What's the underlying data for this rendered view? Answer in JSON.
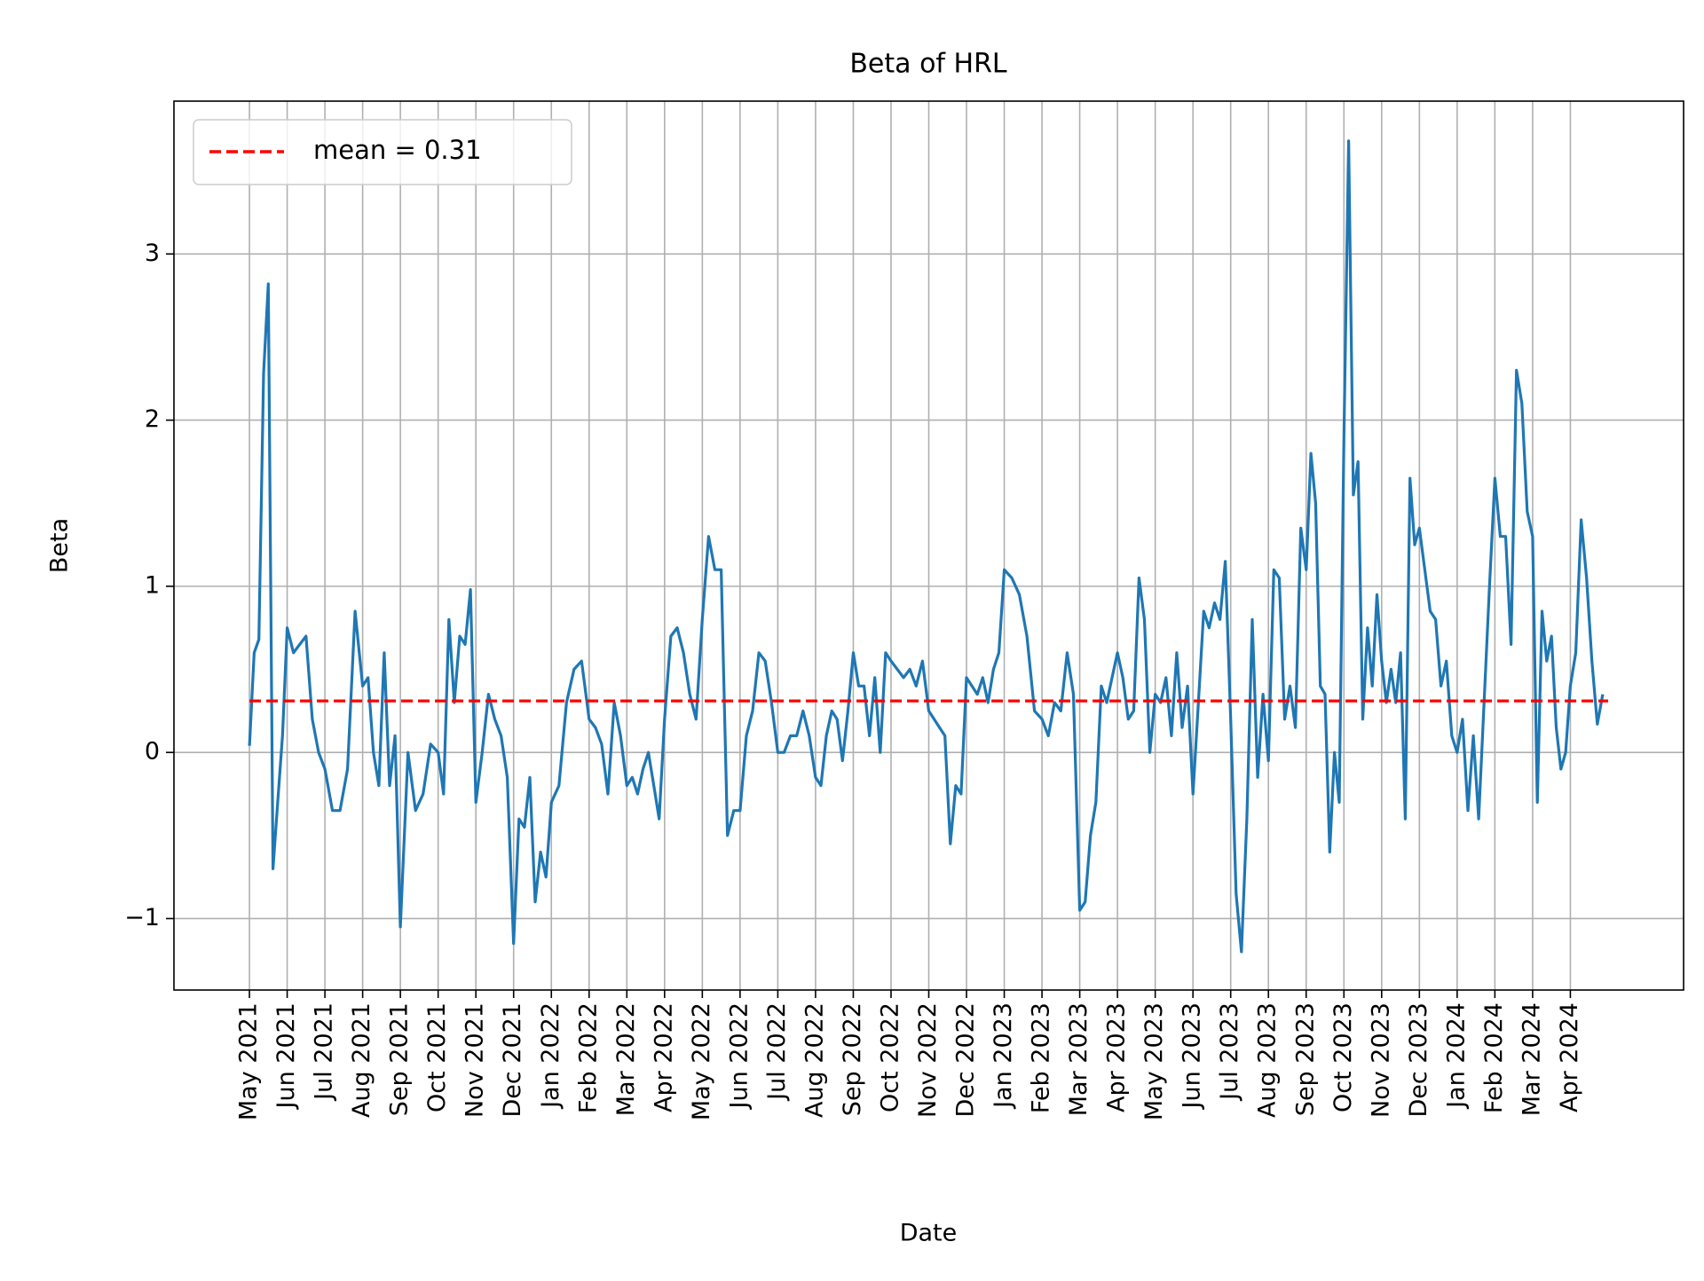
{
  "chart_data": {
    "type": "line",
    "title": "Beta of HRL",
    "xlabel": "Date",
    "ylabel": "Beta",
    "xlim": [
      "2021-03",
      "2024-07"
    ],
    "ylim": [
      -1.43,
      3.92
    ],
    "grid": true,
    "legend": "upper left",
    "mean": 0.31,
    "mean_label": "mean = 0.31",
    "mean_color": "#ff0000",
    "yticks": [
      {
        "value": -1,
        "label": "−1"
      },
      0,
      1,
      2,
      3
    ],
    "xticks": [
      {
        "value": "2021-05",
        "label": "May 2021"
      },
      {
        "value": "2021-06",
        "label": "Jun 2021"
      },
      {
        "value": "2021-07",
        "label": "Jul 2021"
      },
      {
        "value": "2021-08",
        "label": "Aug 2021"
      },
      {
        "value": "2021-09",
        "label": "Sep 2021"
      },
      {
        "value": "2021-10",
        "label": "Oct 2021"
      },
      {
        "value": "2021-11",
        "label": "Nov 2021"
      },
      {
        "value": "2021-12",
        "label": "Dec 2021"
      },
      {
        "value": "2022-01",
        "label": "Jan 2022"
      },
      {
        "value": "2022-02",
        "label": "Feb 2022"
      },
      {
        "value": "2022-03",
        "label": "Mar 2022"
      },
      {
        "value": "2022-04",
        "label": "Apr 2022"
      },
      {
        "value": "2022-05",
        "label": "May 2022"
      },
      {
        "value": "2022-06",
        "label": "Jun 2022"
      },
      {
        "value": "2022-07",
        "label": "Jul 2022"
      },
      {
        "value": "2022-08",
        "label": "Aug 2022"
      },
      {
        "value": "2022-09",
        "label": "Sep 2022"
      },
      {
        "value": "2022-10",
        "label": "Oct 2022"
      },
      {
        "value": "2022-11",
        "label": "Nov 2022"
      },
      {
        "value": "2022-12",
        "label": "Dec 2022"
      },
      {
        "value": "2023-01",
        "label": "Jan 2023"
      },
      {
        "value": "2023-02",
        "label": "Feb 2023"
      },
      {
        "value": "2023-03",
        "label": "Mar 2023"
      },
      {
        "value": "2023-04",
        "label": "Apr 2023"
      },
      {
        "value": "2023-05",
        "label": "May 2023"
      },
      {
        "value": "2023-06",
        "label": "Jun 2023"
      },
      {
        "value": "2023-07",
        "label": "Jul 2023"
      },
      {
        "value": "2023-08",
        "label": "Aug 2023"
      },
      {
        "value": "2023-09",
        "label": "Sep 2023"
      },
      {
        "value": "2023-10",
        "label": "Oct 2023"
      },
      {
        "value": "2023-11",
        "label": "Nov 2023"
      },
      {
        "value": "2023-12",
        "label": "Dec 2023"
      },
      {
        "value": "2024-01",
        "label": "Jan 2024"
      },
      {
        "value": "2024-02",
        "label": "Feb 2024"
      },
      {
        "value": "2024-03",
        "label": "Mar 2024"
      },
      {
        "value": "2024-04",
        "label": "Apr 2024"
      }
    ],
    "series": [
      {
        "color": "#1f77b4",
        "x": [
          "2021-05",
          "2021-05",
          "2021-05",
          "2021-05",
          "2021-05",
          "2021-05",
          "2021-05",
          "2021-05",
          "2021-06",
          "2021-06",
          "2021-06",
          "2021-06",
          "2021-06",
          "2021-06",
          "2021-07",
          "2021-07",
          "2021-07",
          "2021-07",
          "2021-07",
          "2021-08",
          "2021-08",
          "2021-08",
          "2021-08",
          "2021-08",
          "2021-08",
          "2021-08",
          "2021-09",
          "2021-09",
          "2021-09",
          "2021-09",
          "2021-09",
          "2021-10",
          "2021-10",
          "2021-10",
          "2021-10",
          "2021-10",
          "2021-10",
          "2021-10",
          "2021-11",
          "2021-11",
          "2021-11",
          "2021-11",
          "2021-11",
          "2021-11",
          "2021-12",
          "2021-12",
          "2021-12",
          "2021-12",
          "2021-12",
          "2021-12",
          "2021-12",
          "2022-01",
          "2022-01",
          "2022-01",
          "2022-01",
          "2022-01",
          "2022-02",
          "2022-02",
          "2022-02",
          "2022-02",
          "2022-02",
          "2022-02",
          "2022-03",
          "2022-03",
          "2022-03",
          "2022-03",
          "2022-03",
          "2022-03",
          "2022-03",
          "2022-04",
          "2022-04",
          "2022-04",
          "2022-04",
          "2022-04",
          "2022-04",
          "2022-05",
          "2022-05",
          "2022-05",
          "2022-05",
          "2022-05",
          "2022-05",
          "2022-06",
          "2022-06",
          "2022-06",
          "2022-06",
          "2022-06",
          "2022-06",
          "2022-07",
          "2022-07",
          "2022-07",
          "2022-07",
          "2022-07",
          "2022-07",
          "2022-08",
          "2022-08",
          "2022-08",
          "2022-08",
          "2022-08",
          "2022-08",
          "2022-08",
          "2022-09",
          "2022-09",
          "2022-09",
          "2022-09",
          "2022-09",
          "2022-09",
          "2022-09",
          "2022-10",
          "2022-10",
          "2022-10",
          "2022-10",
          "2022-10",
          "2022-10",
          "2022-11",
          "2022-11",
          "2022-11",
          "2022-11",
          "2022-11",
          "2022-11",
          "2022-11",
          "2022-12",
          "2022-12",
          "2022-12",
          "2022-12",
          "2022-12",
          "2022-12",
          "2022-12",
          "2023-01",
          "2023-01",
          "2023-01",
          "2023-01",
          "2023-01",
          "2023-02",
          "2023-02",
          "2023-02",
          "2023-02",
          "2023-02",
          "2023-02",
          "2023-03",
          "2023-03",
          "2023-03",
          "2023-03",
          "2023-03",
          "2023-03",
          "2023-03",
          "2023-04",
          "2023-04",
          "2023-04",
          "2023-04",
          "2023-04",
          "2023-04",
          "2023-04",
          "2023-05",
          "2023-05",
          "2023-05",
          "2023-05",
          "2023-05",
          "2023-05",
          "2023-05",
          "2023-06",
          "2023-06",
          "2023-06",
          "2023-06",
          "2023-06",
          "2023-06",
          "2023-06",
          "2023-07",
          "2023-07",
          "2023-07",
          "2023-07",
          "2023-07",
          "2023-07",
          "2023-07",
          "2023-08",
          "2023-08",
          "2023-08",
          "2023-08",
          "2023-08",
          "2023-08",
          "2023-08",
          "2023-09",
          "2023-09",
          "2023-09",
          "2023-09",
          "2023-09",
          "2023-09",
          "2023-09",
          "2023-09",
          "2023-10",
          "2023-10",
          "2023-10",
          "2023-10",
          "2023-10",
          "2023-10",
          "2023-10",
          "2023-10",
          "2023-11",
          "2023-11",
          "2023-11",
          "2023-11",
          "2023-11",
          "2023-11",
          "2023-11",
          "2023-11",
          "2023-12",
          "2023-12",
          "2023-12",
          "2023-12",
          "2023-12",
          "2023-12",
          "2023-12",
          "2024-01",
          "2024-01",
          "2024-01",
          "2024-01",
          "2024-01",
          "2024-01",
          "2024-01",
          "2024-02",
          "2024-02",
          "2024-02",
          "2024-02",
          "2024-02",
          "2024-02",
          "2024-02",
          "2024-03",
          "2024-03",
          "2024-03",
          "2024-03",
          "2024-03",
          "2024-03",
          "2024-03",
          "2024-03",
          "2024-04",
          "2024-04",
          "2024-04",
          "2024-04",
          "2024-04",
          "2024-04",
          "2024-04"
        ],
        "values": [
          0.04,
          0.6,
          0.68,
          2.28,
          2.82,
          -0.7,
          -0.3,
          0.1,
          0.75,
          0.6,
          0.65,
          0.7,
          0.2,
          0.0,
          -0.1,
          -0.35,
          -0.35,
          -0.1,
          0.85,
          0.4,
          0.45,
          0.0,
          -0.2,
          0.6,
          -0.2,
          0.1,
          -1.05,
          0.0,
          -0.35,
          -0.25,
          0.05,
          0.0,
          -0.25,
          0.8,
          0.3,
          0.7,
          0.65,
          0.98,
          -0.3,
          0.0,
          0.35,
          0.2,
          0.1,
          -0.15,
          -1.15,
          -0.4,
          -0.45,
          -0.15,
          -0.9,
          -0.6,
          -0.75,
          -0.3,
          -0.2,
          0.3,
          0.5,
          0.55,
          0.2,
          0.15,
          0.05,
          -0.25,
          0.3,
          0.1,
          -0.2,
          -0.15,
          -0.25,
          -0.1,
          0.0,
          -0.2,
          -0.4,
          0.2,
          0.7,
          0.75,
          0.6,
          0.35,
          0.2,
          0.8,
          1.3,
          1.1,
          1.1,
          -0.5,
          -0.35,
          -0.35,
          0.1,
          0.25,
          0.6,
          0.55,
          0.3,
          0.0,
          0.0,
          0.1,
          0.1,
          0.25,
          0.1,
          -0.15,
          -0.2,
          0.1,
          0.25,
          0.2,
          -0.05,
          0.25,
          0.6,
          0.4,
          0.4,
          0.1,
          0.45,
          0.0,
          0.6,
          0.55,
          0.5,
          0.45,
          0.5,
          0.4,
          0.55,
          0.25,
          0.2,
          0.15,
          0.1,
          -0.55,
          -0.2,
          -0.25,
          0.45,
          0.4,
          0.35,
          0.45,
          0.3,
          0.5,
          0.6,
          1.1,
          1.05,
          0.95,
          0.7,
          0.25,
          0.2,
          0.1,
          0.3,
          0.25,
          0.6,
          0.35,
          -0.95,
          -0.9,
          -0.5,
          -0.3,
          0.4,
          0.3,
          0.45,
          0.6,
          0.45,
          0.2,
          0.25,
          1.05,
          0.8,
          0.0,
          0.35,
          0.3,
          0.45,
          0.1,
          0.6,
          0.15,
          0.4,
          -0.25,
          0.3,
          0.85,
          0.75,
          0.9,
          0.8,
          1.15,
          0.2,
          -0.85,
          -1.2,
          -0.4,
          0.8,
          -0.15,
          0.35,
          -0.05,
          1.1,
          1.05,
          0.2,
          0.4,
          0.15,
          1.35,
          1.1,
          1.8,
          1.5,
          0.4,
          0.35,
          -0.6,
          0.0,
          -0.3,
          1.9,
          3.68,
          1.55,
          1.75,
          0.2,
          0.75,
          0.4,
          0.95,
          0.55,
          0.3,
          0.5,
          0.3,
          0.6,
          -0.4,
          1.65,
          1.25,
          1.35,
          1.1,
          0.85,
          0.8,
          0.4,
          0.55,
          0.1,
          0.0,
          0.2,
          -0.35,
          0.1,
          -0.4,
          0.3,
          1.0,
          1.65,
          1.3,
          1.3,
          0.65,
          2.3,
          2.1,
          1.45,
          1.3,
          -0.3,
          0.85,
          0.55,
          0.7,
          0.15,
          -0.1,
          0.0,
          0.4,
          0.6,
          1.4,
          1.05,
          0.55,
          0.17,
          0.35
        ]
      }
    ]
  }
}
